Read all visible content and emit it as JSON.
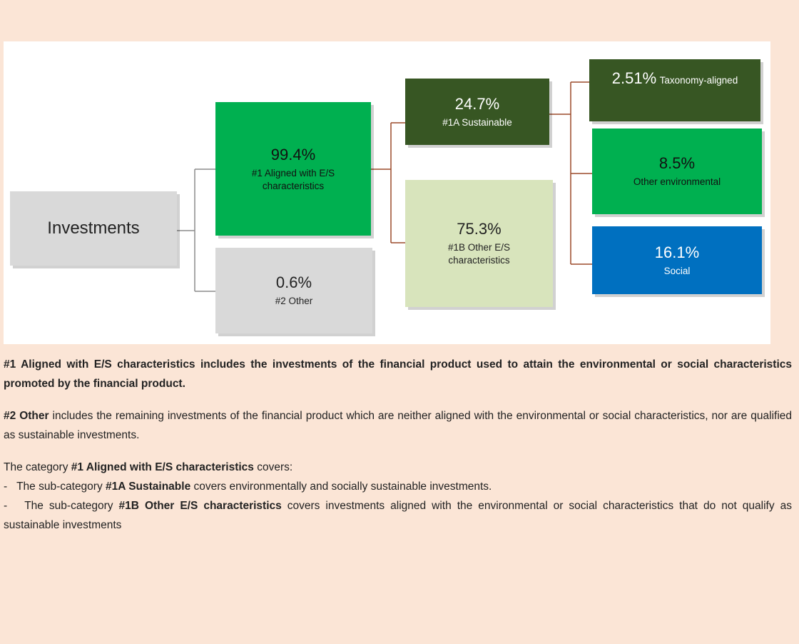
{
  "nodes": [
    {
      "value": "Investments"
    },
    {
      "value": "99.4%",
      "label": "#1 Aligned with E/S characteristics"
    },
    {
      "value": "0.6%",
      "label": "#2 Other"
    },
    {
      "value": "24.7%",
      "label": "#1A Sustainable"
    },
    {
      "value": "75.3%",
      "label": "#1B Other E/S characteristics"
    },
    {
      "value": "2.51%",
      "label": "Taxonomy-aligned"
    },
    {
      "value": "8.5%",
      "label": "Other environmental"
    },
    {
      "value": "16.1%",
      "label": "Social"
    }
  ],
  "paragraphs": [
    [
      "#1 Aligned with E/S characteristics includes the investments of the financial product used to attain the environmental or social characteristics promoted by the financial product."
    ],
    [
      "#2 Other",
      " includes the remaining investments of the financial product which are neither aligned with the environmental or social characteristics, nor are qualified as sustainable investments."
    ],
    [
      "The category ",
      "#1 Aligned with E/S characteristics",
      " covers:"
    ]
  ],
  "list": [
    [
      "-",
      "The sub-category ",
      "#1A Sustainable",
      " covers environmentally and socially sustainable investments."
    ],
    [
      "-",
      "The sub-category ",
      "#1B Other E/S characteristics",
      " covers investments aligned with the environmental or social characteristics that do not qualify as sustainable investments"
    ]
  ]
}
